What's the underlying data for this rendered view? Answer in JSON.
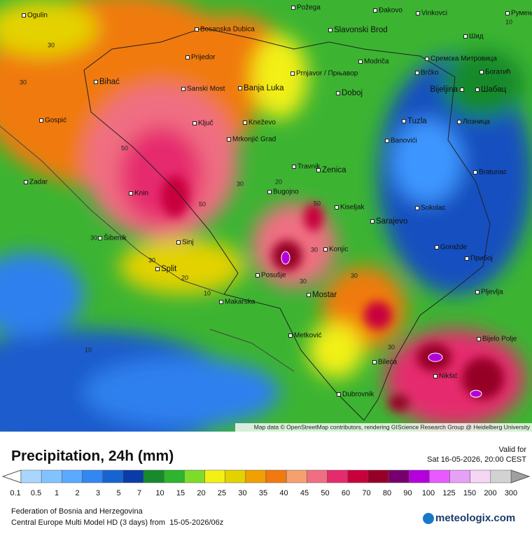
{
  "map": {
    "cities": [
      "Ogulin",
      "Požega",
      "Đakovo",
      "Vinkovci",
      "Румења",
      "Bosanska Dubica",
      "Slavonski Brod",
      "Шид",
      "Prijedor",
      "Modriča",
      "Сремска Митровица",
      "Prnjavor / Прњавор",
      "Brčko",
      "Богатић",
      "Bihać",
      "Sanski Most",
      "Banja Luka",
      "Doboj",
      "Bijeljina",
      "Шабац",
      "Gospić",
      "Ključ",
      "Kneževo",
      "Tuzla",
      "Лозница",
      "Mrkonjić Grad",
      "Banovići",
      "Travnik",
      "Zenica",
      "Bratunac",
      "Zadar",
      "Knin",
      "Bugojno",
      "Kiseljak",
      "Sokolac",
      "Sarajevo",
      "Šibenik",
      "Sinj",
      "Konjic",
      "Goražde",
      "Прибој",
      "Split",
      "Posušje",
      "Pljevlja",
      "Makarska",
      "Mostar",
      "Metković",
      "Bijelo Polje",
      "Bileća",
      "Nikšić",
      "Dubrovnik"
    ],
    "contour_labels": [
      "30",
      "30",
      "50",
      "50",
      "30",
      "20",
      "50",
      "30",
      "30",
      "30",
      "30",
      "30",
      "20",
      "10",
      "10",
      "30",
      "10"
    ],
    "attribution": "Map data © OpenStreetMap contributors, rendering GIScience Research Group @ Heidelberg University"
  },
  "legend": {
    "title": "Precipitation, 24h (mm)",
    "valid_label": "Valid for",
    "valid_time": "Sat 16-05-2026, 20:00 CEST",
    "labels": [
      "0.1",
      "0.5",
      "1",
      "2",
      "3",
      "5",
      "7",
      "10",
      "15",
      "20",
      "25",
      "30",
      "35",
      "40",
      "45",
      "50",
      "60",
      "70",
      "80",
      "90",
      "100",
      "125",
      "150",
      "200",
      "300"
    ],
    "colors": [
      "#a8d6ff",
      "#82c3ff",
      "#5aaaff",
      "#3288f0",
      "#1664d2",
      "#0a3ca8",
      "#168a2c",
      "#2eb42e",
      "#7ddc2a",
      "#f2f014",
      "#e4d200",
      "#f0a000",
      "#f07a10",
      "#f6a070",
      "#f06e82",
      "#e62a6e",
      "#c8003c",
      "#960028",
      "#78006e",
      "#b400dc",
      "#e65aff",
      "#e6a0f5",
      "#f5d6f5",
      "#d2d2d2"
    ]
  },
  "footer": {
    "region": "Federation of Bosnia and Herzegovina",
    "model": "Central Europe Multi Model HD (3 days) from  15-05-2026/06z",
    "logo": "meteologix.com"
  }
}
